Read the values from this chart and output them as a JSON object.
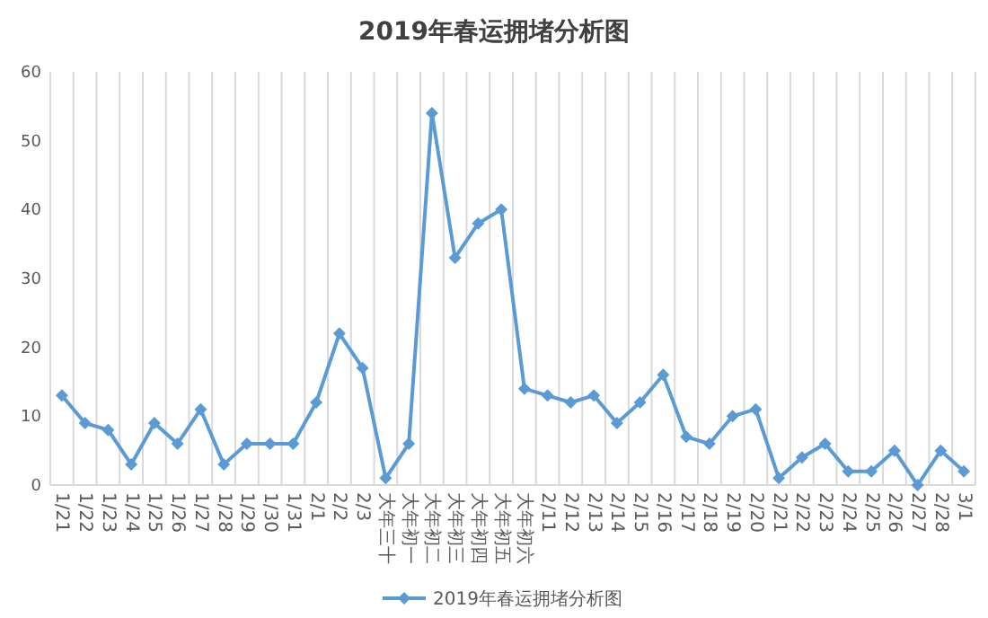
{
  "chart_data": {
    "type": "line",
    "title": "2019年春运拥堵分析图",
    "categories": [
      "1/21",
      "1/22",
      "1/23",
      "1/24",
      "1/25",
      "1/26",
      "1/27",
      "1/28",
      "1/29",
      "1/30",
      "1/31",
      "2/1",
      "2/2",
      "2/3",
      "大年三十",
      "大年初一",
      "大年初二",
      "大年初三",
      "大年初四",
      "大年初五",
      "大年初六",
      "2/11",
      "2/12",
      "2/13",
      "2/14",
      "2/15",
      "2/16",
      "2/17",
      "2/18",
      "2/19",
      "2/20",
      "2/21",
      "2/22",
      "2/23",
      "2/24",
      "2/25",
      "2/26",
      "2/27",
      "2/28",
      "3/1"
    ],
    "series": [
      {
        "name": "2019年春运拥堵分析图",
        "color": "#5b9bd5",
        "values": [
          13,
          9,
          8,
          3,
          9,
          6,
          11,
          3,
          6,
          6,
          6,
          12,
          22,
          17,
          1,
          6,
          54,
          33,
          38,
          40,
          14,
          13,
          12,
          13,
          9,
          12,
          16,
          7,
          6,
          10,
          11,
          1,
          4,
          6,
          2,
          2,
          5,
          0,
          5,
          2
        ]
      }
    ],
    "ylim": [
      0,
      60
    ],
    "yticks": [
      0,
      10,
      20,
      30,
      40,
      50,
      60
    ],
    "grid": "x",
    "legend": "bottom",
    "marker": "diamond",
    "line_style": "solid"
  }
}
